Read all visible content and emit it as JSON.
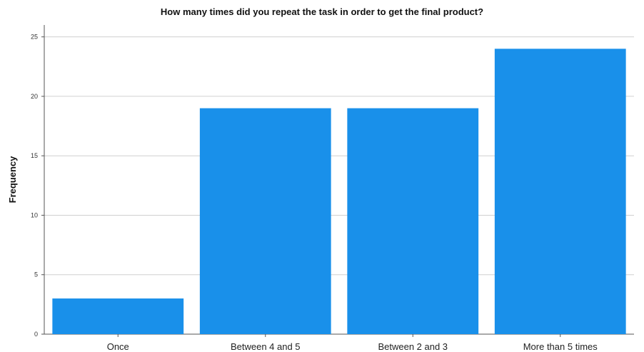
{
  "chart_data": {
    "type": "bar",
    "title": "How many times did you repeat the task in order to get the final product?",
    "xlabel": "",
    "ylabel": "Frequency",
    "categories": [
      "Once",
      "Between 4 and 5",
      "Between 2 and 3",
      "More than 5 times"
    ],
    "values": [
      3,
      19,
      19,
      24
    ],
    "ylim": [
      0,
      26
    ],
    "yticks": [
      0,
      5,
      10,
      15,
      20,
      25
    ],
    "grid": true,
    "bar_color": "#1990ea",
    "grid_color": "#d0d0d0"
  }
}
